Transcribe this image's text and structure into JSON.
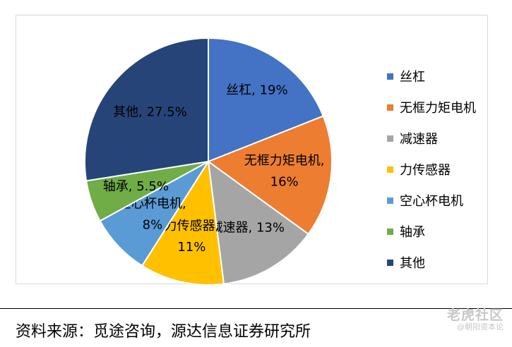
{
  "chart_data": {
    "type": "pie",
    "categories": [
      "丝杠",
      "无框力矩电机",
      "减速器",
      "力传感器",
      "空心杯电机",
      "轴承",
      "其他"
    ],
    "values": [
      19,
      16,
      13,
      11,
      8,
      5.5,
      27.5
    ],
    "colors": [
      "#4472C4",
      "#ED7D31",
      "#A5A5A5",
      "#FFC000",
      "#5B9BD5",
      "#70AD47",
      "#264478"
    ],
    "slice_labels": [
      [
        "丝杠, 19%"
      ],
      [
        "无框力矩电机,",
        "16%"
      ],
      [
        "减速器, 13%"
      ],
      [
        "力传感器,",
        "11%"
      ],
      [
        "空心杯电机,",
        "8%"
      ],
      [
        "轴承, 5.5%"
      ],
      [
        "其他, 27.5%"
      ]
    ],
    "legend_position": "right"
  },
  "footer": {
    "source": "资料来源：觅途咨询，源达信息证券研究所"
  },
  "watermark": {
    "main": "老虎社区",
    "sub": "@朝阳资本论"
  }
}
